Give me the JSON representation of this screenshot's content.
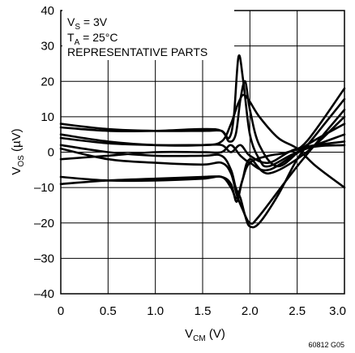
{
  "chart_data": {
    "type": "line",
    "xlabel": {
      "main": "V",
      "sub": "CM",
      "unit": " (V)"
    },
    "ylabel": {
      "main": "V",
      "sub": "OS",
      "unit": " (µV)"
    },
    "xlim": [
      0,
      3.0
    ],
    "ylim": [
      -40,
      40
    ],
    "x_ticks": [
      0,
      0.5,
      1.0,
      1.5,
      2.0,
      2.5,
      3.0
    ],
    "x_tick_labels": [
      "0",
      "0.5",
      "1.0",
      "1.5",
      "2.0",
      "2.5",
      "3.0"
    ],
    "y_ticks": [
      -40,
      -30,
      -20,
      -10,
      0,
      10,
      20,
      30,
      40
    ],
    "y_tick_labels": [
      "–40",
      "–30",
      "–20",
      "–10",
      "0",
      "10",
      "20",
      "30",
      "40"
    ],
    "grid": true,
    "annotations": [
      {
        "main": "V",
        "sub": "S",
        "rest": " = 3V"
      },
      {
        "main": "T",
        "sub": "A",
        "rest": " = 25°C"
      },
      {
        "main": "REPRESENTATIVE PARTS",
        "sub": "",
        "rest": ""
      }
    ],
    "figure_id": "60812 G05",
    "series": [
      {
        "x": [
          0,
          0.5,
          1.0,
          1.5,
          1.7,
          1.78,
          1.83,
          1.88,
          1.93,
          2.0,
          2.1,
          2.2,
          2.5,
          3.0
        ],
        "y": [
          8,
          6.5,
          6,
          6,
          6,
          4,
          10,
          27,
          20,
          5,
          -2,
          -4,
          0,
          5
        ]
      },
      {
        "x": [
          0,
          0.5,
          1.0,
          1.5,
          1.7,
          1.78,
          1.85,
          1.9,
          1.95,
          2.0,
          2.1,
          2.3,
          2.6,
          3.0
        ],
        "y": [
          7,
          6,
          6,
          6.5,
          6,
          3,
          5,
          15,
          20,
          12,
          2,
          -4,
          2,
          8
        ]
      },
      {
        "x": [
          0,
          0.5,
          1.0,
          1.5,
          1.7,
          1.8,
          1.86,
          1.92,
          2.0,
          2.2,
          2.4,
          2.6,
          3.0
        ],
        "y": [
          -9,
          -8,
          -7.5,
          -7,
          -7,
          -9,
          -14,
          -8,
          -3,
          -1,
          0,
          3,
          18
        ]
      },
      {
        "x": [
          0,
          0.5,
          1.0,
          1.5,
          1.7,
          1.8,
          1.86,
          1.92,
          2.0,
          2.2,
          2.6,
          3.0
        ],
        "y": [
          -7,
          -8,
          -8,
          -7.5,
          -7,
          -10,
          -13,
          -8,
          -2,
          -6,
          0,
          10
        ]
      },
      {
        "x": [
          0,
          0.5,
          1.0,
          1.5,
          1.7,
          1.8,
          1.85,
          1.9,
          1.95,
          2.0,
          2.1,
          2.3,
          2.5,
          2.7,
          3.0
        ],
        "y": [
          2,
          0,
          -1,
          -1,
          -1,
          -5,
          -10,
          -13,
          -18,
          -21,
          -20,
          -12,
          -2,
          5,
          15
        ]
      },
      {
        "x": [
          0,
          0.5,
          1.0,
          1.5,
          1.7,
          1.8,
          1.86,
          1.92,
          2.0,
          2.1,
          2.5,
          3.0
        ],
        "y": [
          1,
          -2,
          -3,
          -3.5,
          -3,
          -6,
          -12,
          -16,
          -20,
          -18,
          -4,
          12
        ]
      },
      {
        "x": [
          0,
          0.5,
          1.0,
          1.5,
          1.7,
          1.8,
          1.9,
          2.0,
          2.2,
          2.5,
          3.0
        ],
        "y": [
          4,
          2.5,
          2,
          2,
          2,
          0,
          2,
          -1,
          -3,
          1,
          3
        ]
      },
      {
        "x": [
          0,
          0.5,
          1.0,
          1.5,
          1.7,
          1.8,
          1.9,
          2.0,
          2.2,
          2.6,
          3.0
        ],
        "y": [
          -2,
          -1,
          0,
          0,
          0,
          2,
          -1,
          -3,
          -5,
          1,
          2
        ]
      },
      {
        "x": [
          0,
          0.5,
          1.0,
          1.5,
          1.7,
          1.8,
          1.88,
          1.95,
          2.1,
          2.3,
          2.5,
          2.7,
          3.0
        ],
        "y": [
          5,
          3,
          2,
          2,
          3,
          8,
          14,
          16,
          10,
          4,
          1,
          -4,
          -10
        ]
      }
    ]
  }
}
